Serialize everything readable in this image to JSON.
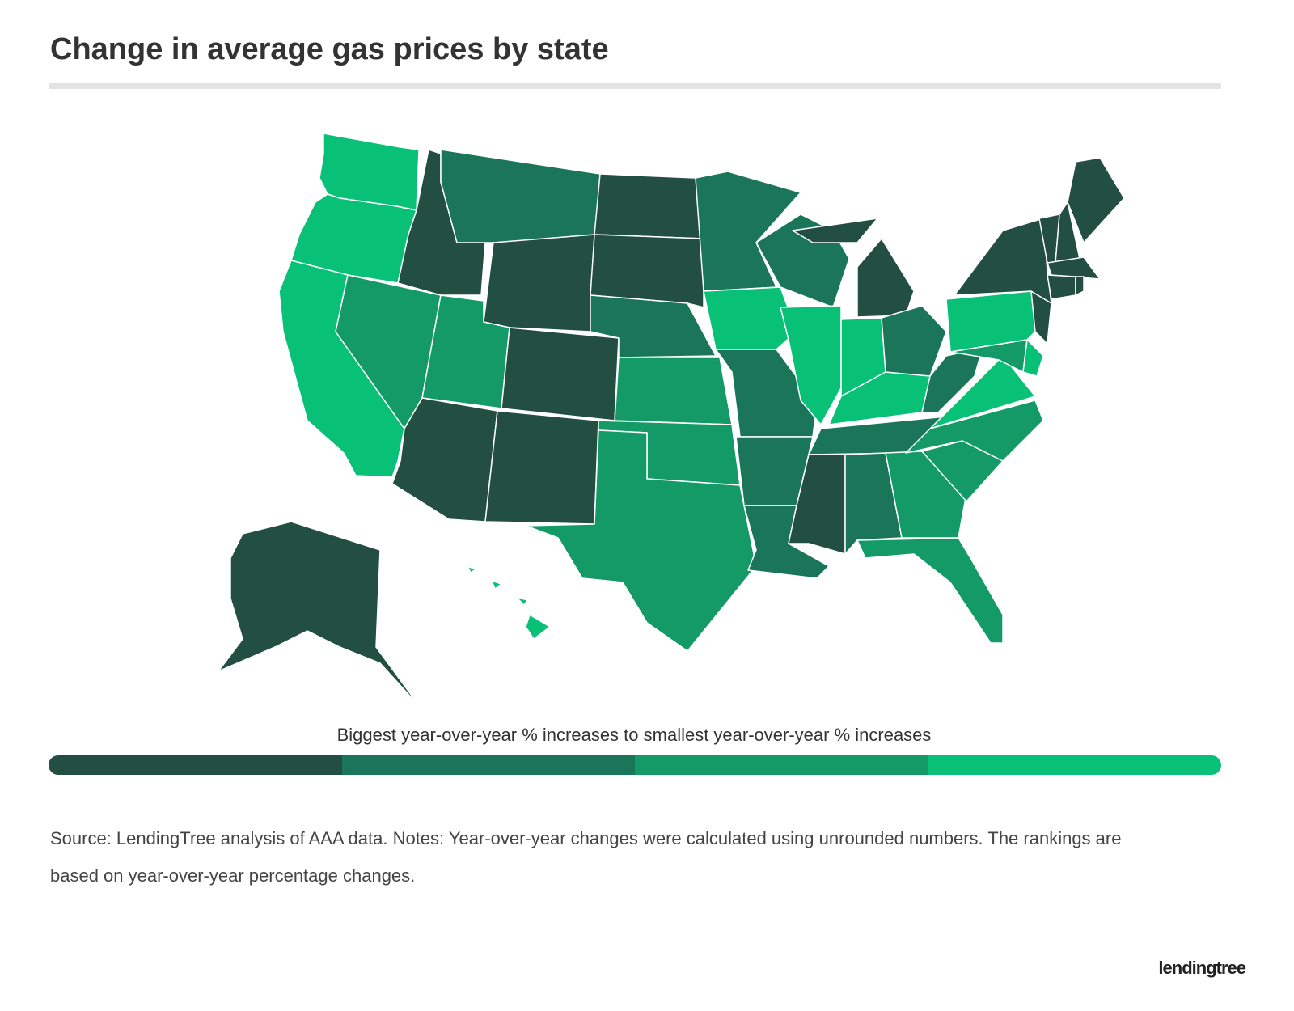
{
  "header": {
    "title": "Change in average gas prices by state"
  },
  "legend": {
    "caption": "Biggest year-over-year % increases to smallest year-over-year % increases",
    "colors": [
      "#234e42",
      "#1b7659",
      "#139a66",
      "#08c177"
    ]
  },
  "footer": {
    "note": "Source: LendingTree analysis of AAA data. Notes: Year-over-year changes were calculated using unrounded numbers. The rankings are based on year-over-year percentage changes.",
    "logo": "lendingtree"
  }
}
